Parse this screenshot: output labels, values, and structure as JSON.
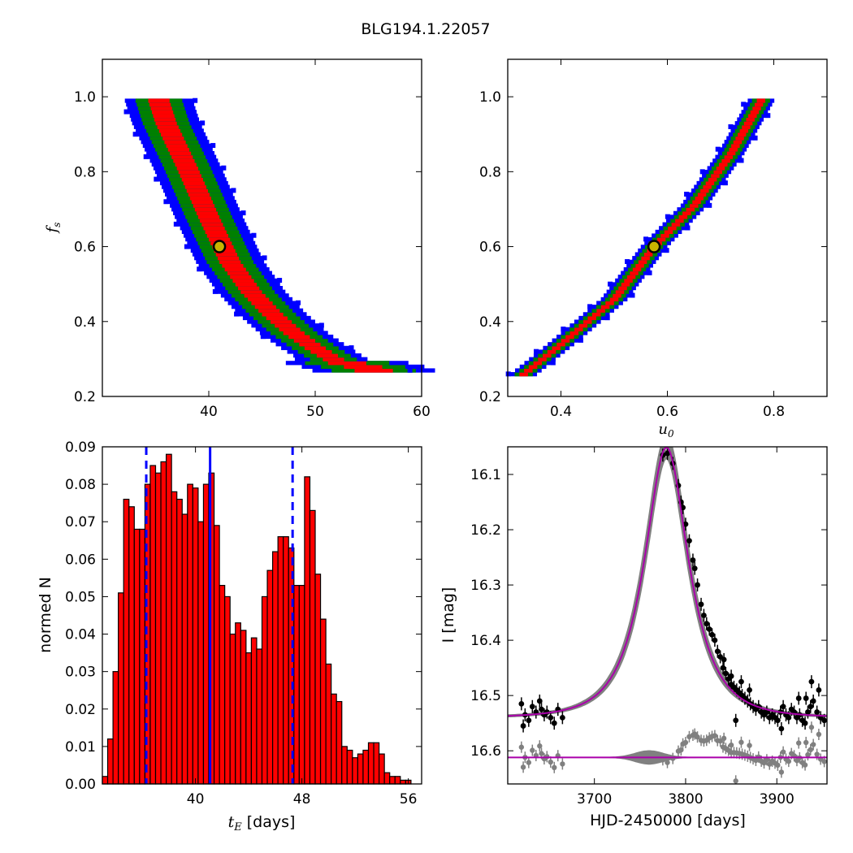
{
  "figure": {
    "title": "BLG194.1.22057"
  },
  "chart_data": [
    {
      "id": "fs_vs_tE",
      "type": "heatmap",
      "xlabel": "",
      "ylabel": "f_s",
      "xlim": [
        30,
        60
      ],
      "ylim": [
        0.2,
        1.1
      ],
      "xticks": [
        40,
        50,
        60
      ],
      "yticks": [
        0.2,
        0.4,
        0.6,
        0.8,
        1.0
      ],
      "levels": [
        {
          "color": "#0000ff",
          "half_width": 3.2
        },
        {
          "color": "#008000",
          "half_width": 2.2
        },
        {
          "color": "#ff0000",
          "half_width": 1.0
        }
      ],
      "ridge": [
        [
          35.2,
          1.0
        ],
        [
          36,
          0.93
        ],
        [
          38,
          0.81
        ],
        [
          40,
          0.68
        ],
        [
          42,
          0.56
        ],
        [
          44,
          0.48
        ],
        [
          46,
          0.42
        ],
        [
          48,
          0.37
        ],
        [
          50,
          0.33
        ],
        [
          52,
          0.295
        ],
        [
          54,
          0.285
        ],
        [
          55.5,
          0.27
        ]
      ],
      "tail_end": 56.5,
      "best_fit": {
        "x": 41,
        "y": 0.6
      }
    },
    {
      "id": "fs_vs_u0",
      "type": "heatmap",
      "xlabel": "u_0",
      "ylabel": "",
      "xlim": [
        0.3,
        0.9
      ],
      "ylim": [
        0.2,
        1.1
      ],
      "xticks": [
        0.4,
        0.6,
        0.8
      ],
      "yticks": [
        0.2,
        0.4,
        0.6,
        0.8,
        1.0
      ],
      "levels": [
        {
          "color": "#0000ff",
          "half_width": 0.025
        },
        {
          "color": "#008000",
          "half_width": 0.017
        },
        {
          "color": "#ff0000",
          "half_width": 0.008
        }
      ],
      "ridge": [
        [
          0.33,
          0.26
        ],
        [
          0.4,
          0.34
        ],
        [
          0.5,
          0.46
        ],
        [
          0.575,
          0.6
        ],
        [
          0.65,
          0.71
        ],
        [
          0.72,
          0.85
        ],
        [
          0.78,
          1.0
        ]
      ],
      "best_fit": {
        "x": 0.575,
        "y": 0.6
      }
    },
    {
      "id": "tE_histogram",
      "type": "bar",
      "xlabel": "t_E  [days]",
      "ylabel": "normed N",
      "xlim": [
        33,
        57
      ],
      "ylim": [
        0,
        0.09
      ],
      "xticks": [
        40,
        48,
        56
      ],
      "yticks": [
        0.0,
        0.01,
        0.02,
        0.03,
        0.04,
        0.05,
        0.06,
        0.07,
        0.08,
        0.09
      ],
      "ytick_labels": [
        "0.00",
        "0.01",
        "0.02",
        "0.03",
        "0.04",
        "0.05",
        "0.06",
        "0.07",
        "0.08",
        "0.09"
      ],
      "bin_start": 33,
      "bin_width": 0.4,
      "values": [
        0.002,
        0.012,
        0.03,
        0.051,
        0.076,
        0.074,
        0.068,
        0.068,
        0.08,
        0.085,
        0.083,
        0.086,
        0.088,
        0.078,
        0.076,
        0.072,
        0.08,
        0.079,
        0.07,
        0.08,
        0.083,
        0.069,
        0.053,
        0.05,
        0.04,
        0.043,
        0.041,
        0.035,
        0.039,
        0.036,
        0.05,
        0.057,
        0.062,
        0.066,
        0.066,
        0.063,
        0.053,
        0.053,
        0.082,
        0.073,
        0.056,
        0.044,
        0.032,
        0.024,
        0.022,
        0.01,
        0.009,
        0.007,
        0.008,
        0.009,
        0.011,
        0.011,
        0.008,
        0.003,
        0.002,
        0.002,
        0.001,
        0.001
      ],
      "bar_color": "#ff0000",
      "vlines": [
        {
          "x": 36.3,
          "style": "dashed",
          "color": "#0000ff"
        },
        {
          "x": 41.1,
          "style": "solid",
          "color": "#0000ff"
        },
        {
          "x": 47.3,
          "style": "dashed",
          "color": "#0000ff"
        }
      ]
    },
    {
      "id": "light_curve",
      "type": "scatter",
      "xlabel": "HJD-2450000 [days]",
      "ylabel": "I [mag]",
      "xlim": [
        3605,
        3955
      ],
      "ylim": [
        16.66,
        16.05
      ],
      "xticks": [
        3700,
        3800,
        3900
      ],
      "yticks": [
        16.1,
        16.2,
        16.3,
        16.4,
        16.5,
        16.6
      ],
      "model": {
        "t0": 3779,
        "tE": 41,
        "u0": 0.575,
        "fs": 0.6,
        "I_base": 16.54,
        "color": "#aa00aa",
        "band_color": "#808080"
      },
      "data_points": [
        [
          3620,
          16.515
        ],
        [
          3622,
          16.555
        ],
        [
          3624,
          16.535
        ],
        [
          3628,
          16.545
        ],
        [
          3632,
          16.52
        ],
        [
          3636,
          16.53
        ],
        [
          3640,
          16.51
        ],
        [
          3642,
          16.525
        ],
        [
          3645,
          16.535
        ],
        [
          3648,
          16.53
        ],
        [
          3652,
          16.54
        ],
        [
          3656,
          16.55
        ],
        [
          3660,
          16.525
        ],
        [
          3665,
          16.54
        ],
        [
          3775,
          16.065
        ],
        [
          3780,
          16.062
        ],
        [
          3786,
          16.08
        ],
        [
          3792,
          16.12
        ],
        [
          3795,
          16.15
        ],
        [
          3797,
          16.16
        ],
        [
          3800,
          16.19
        ],
        [
          3804,
          16.22
        ],
        [
          3808,
          16.255
        ],
        [
          3810,
          16.27
        ],
        [
          3813,
          16.3
        ],
        [
          3817,
          16.335
        ],
        [
          3820,
          16.355
        ],
        [
          3823,
          16.37
        ],
        [
          3826,
          16.38
        ],
        [
          3829,
          16.39
        ],
        [
          3832,
          16.4
        ],
        [
          3835,
          16.42
        ],
        [
          3838,
          16.43
        ],
        [
          3841,
          16.45
        ],
        [
          3844,
          16.46
        ],
        [
          3847,
          16.47
        ],
        [
          3850,
          16.48
        ],
        [
          3853,
          16.485
        ],
        [
          3856,
          16.49
        ],
        [
          3859,
          16.495
        ],
        [
          3862,
          16.5
        ],
        [
          3865,
          16.505
        ],
        [
          3868,
          16.51
        ],
        [
          3871,
          16.515
        ],
        [
          3874,
          16.52
        ],
        [
          3877,
          16.525
        ],
        [
          3880,
          16.52
        ],
        [
          3883,
          16.53
        ],
        [
          3886,
          16.535
        ],
        [
          3889,
          16.53
        ],
        [
          3892,
          16.54
        ],
        [
          3895,
          16.535
        ],
        [
          3898,
          16.54
        ],
        [
          3901,
          16.545
        ],
        [
          3904,
          16.53
        ],
        [
          3907,
          16.52
        ],
        [
          3910,
          16.535
        ],
        [
          3913,
          16.54
        ],
        [
          3916,
          16.525
        ],
        [
          3919,
          16.53
        ],
        [
          3922,
          16.54
        ],
        [
          3925,
          16.535
        ],
        [
          3928,
          16.545
        ],
        [
          3931,
          16.55
        ],
        [
          3934,
          16.53
        ],
        [
          3937,
          16.52
        ],
        [
          3940,
          16.51
        ],
        [
          3944,
          16.53
        ],
        [
          3948,
          16.54
        ],
        [
          3952,
          16.545
        ],
        [
          3861,
          16.475
        ],
        [
          3870,
          16.49
        ],
        [
          3850,
          16.465
        ],
        [
          3842,
          16.435
        ],
        [
          3855,
          16.545
        ],
        [
          3905,
          16.56
        ],
        [
          3932,
          16.505
        ],
        [
          3946,
          16.49
        ],
        [
          3938,
          16.475
        ],
        [
          3924,
          16.505
        ]
      ],
      "point_color": "#000000",
      "residual_color": "#808080"
    }
  ]
}
